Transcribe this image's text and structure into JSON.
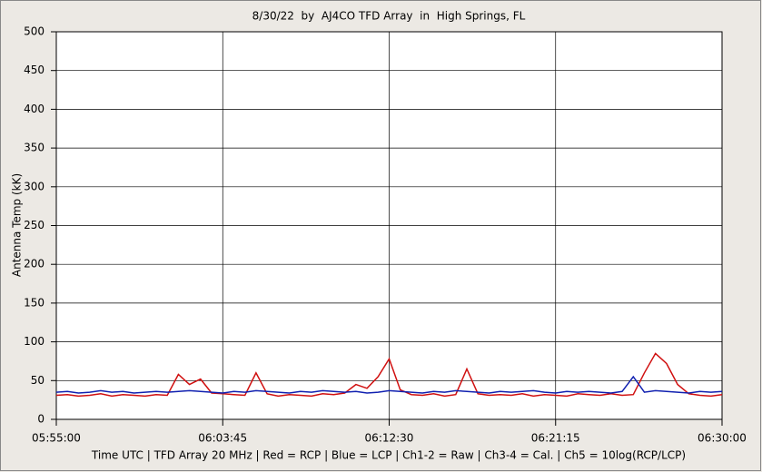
{
  "chart_data": {
    "type": "line",
    "title": "8/30/22  by  AJ4CO TFD Array  in  High Springs, FL",
    "y_label": "Antenna Temp (kK)",
    "footer": "Time UTC | TFD Array 20 MHz | Red = RCP | Blue = LCP | Ch1-2 = Raw | Ch3-4 = Cal. | Ch5 = 10log(RCP/LCP)",
    "categories": [
      "05:55:00",
      null,
      null,
      null,
      null,
      null,
      null,
      null,
      null,
      null,
      null,
      null,
      null,
      null,
      null,
      "06:03:45",
      null,
      null,
      null,
      null,
      null,
      null,
      null,
      null,
      null,
      null,
      null,
      null,
      null,
      null,
      "06:12:30",
      null,
      null,
      null,
      null,
      null,
      null,
      null,
      null,
      null,
      null,
      null,
      null,
      null,
      null,
      "06:21:15",
      null,
      null,
      null,
      null,
      null,
      null,
      null,
      null,
      null,
      null,
      null,
      null,
      null,
      null,
      "06:30:00"
    ],
    "series": [
      {
        "name": "RCP",
        "color": "#d01010",
        "values": [
          31,
          32,
          30,
          31,
          33,
          30,
          32,
          31,
          30,
          32,
          31,
          58,
          45,
          52,
          34,
          33,
          32,
          31,
          60,
          33,
          30,
          32,
          31,
          30,
          33,
          32,
          34,
          45,
          40,
          55,
          78,
          38,
          32,
          31,
          33,
          30,
          32,
          65,
          33,
          31,
          32,
          31,
          33,
          30,
          32,
          31,
          30,
          33,
          32,
          31,
          33,
          31,
          32,
          60,
          85,
          72,
          45,
          33,
          31,
          30,
          32
        ]
      },
      {
        "name": "LCP",
        "color": "#1020b0",
        "values": [
          35,
          36,
          34,
          35,
          37,
          35,
          36,
          34,
          35,
          36,
          35,
          36,
          37,
          36,
          35,
          34,
          36,
          35,
          37,
          36,
          35,
          34,
          36,
          35,
          37,
          36,
          35,
          36,
          34,
          35,
          37,
          36,
          35,
          34,
          36,
          35,
          37,
          36,
          35,
          34,
          36,
          35,
          36,
          37,
          35,
          34,
          36,
          35,
          36,
          35,
          34,
          36,
          55,
          35,
          37,
          36,
          35,
          34,
          36,
          35,
          36
        ]
      }
    ],
    "ylim": [
      0,
      500
    ],
    "yticks": [
      0,
      50,
      100,
      150,
      200,
      250,
      300,
      350,
      400,
      450,
      500
    ],
    "grid": true
  }
}
